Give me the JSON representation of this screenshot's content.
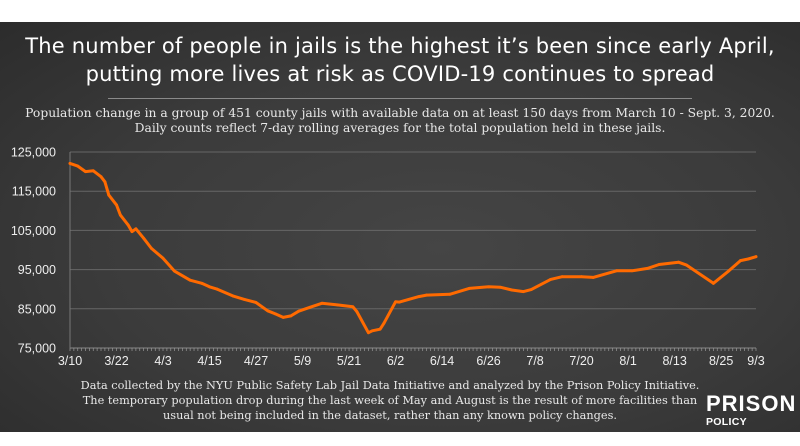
{
  "title_lines": [
    "The number of people in jails is the highest it’s been since early April,",
    "putting more lives at risk as COVID-19 continues to spread"
  ],
  "subtitle_lines": [
    "Population change in a group of 451 county jails with available data on at least 150 days from March 10 - Sept. 3, 2020.",
    "Daily counts reflect 7-day rolling averages for the total population held in these jails."
  ],
  "footer_lines": [
    "Data collected by the NYU Public Safety Lab Jail Data Initiative and analyzed by the Prison Policy Initiative.",
    "The temporary population drop during the last week of May and August is the result of more facilities than",
    "usual not being included in the dataset, rather than any known policy changes."
  ],
  "logo": {
    "line1": "PRISON",
    "line2": "POLICY INITIATIVE"
  },
  "colors": {
    "line": "#ff6a00",
    "grid": "#666666",
    "background": "#3b3b3b"
  },
  "chart_data": {
    "type": "line",
    "title": "",
    "xlabel": "",
    "ylabel": "",
    "ylim": [
      75000,
      125000
    ],
    "yticks": [
      "125,000",
      "115,000",
      "105,000",
      "95,000",
      "85,000",
      "75,000"
    ],
    "ytick_values": [
      125000,
      115000,
      105000,
      95000,
      85000,
      75000
    ],
    "xticks": [
      "3/10",
      "3/22",
      "4/3",
      "4/15",
      "4/27",
      "5/9",
      "5/21",
      "6/2",
      "6/14",
      "6/26",
      "7/8",
      "7/20",
      "8/1",
      "8/13",
      "8/25",
      "9/3"
    ],
    "xlim": [
      "3/10",
      "9/3"
    ],
    "grid": true,
    "legend": "none",
    "series": [
      {
        "x": [
          "3/10",
          "3/12",
          "3/14",
          "3/16",
          "3/18",
          "3/19",
          "3/20",
          "3/22",
          "3/23",
          "3/25",
          "3/26",
          "3/27",
          "3/29",
          "3/31",
          "4/3",
          "4/6",
          "4/10",
          "4/13",
          "4/15",
          "4/17",
          "4/21",
          "4/24",
          "4/27",
          "4/30",
          "5/2",
          "5/4",
          "5/6",
          "5/8",
          "5/11",
          "5/14",
          "5/18",
          "5/22",
          "5/23",
          "5/26",
          "5/27",
          "5/29",
          "5/30",
          "6/2",
          "6/3",
          "6/8",
          "6/10",
          "6/16",
          "6/21",
          "6/26",
          "6/29",
          "7/2",
          "7/5",
          "7/7",
          "7/12",
          "7/15",
          "7/20",
          "7/23",
          "7/29",
          "8/2",
          "8/6",
          "8/9",
          "8/14",
          "8/16",
          "8/23",
          "8/27",
          "8/30",
          "9/1",
          "9/3"
        ],
        "values": [
          122100,
          121400,
          120000,
          120200,
          118700,
          117400,
          114000,
          111500,
          108900,
          106400,
          104700,
          105400,
          103000,
          100400,
          97900,
          94600,
          92300,
          91500,
          90600,
          90000,
          88300,
          87400,
          86600,
          84500,
          83700,
          82800,
          83200,
          84400,
          85400,
          86400,
          86000,
          85500,
          84300,
          78900,
          79400,
          79800,
          81300,
          86800,
          86700,
          88100,
          88500,
          88700,
          90200,
          90600,
          90500,
          89800,
          89400,
          89900,
          92500,
          93200,
          93200,
          93000,
          94700,
          94700,
          95300,
          96300,
          96900,
          96200,
          91500,
          94700,
          97300,
          97700,
          98300
        ]
      }
    ]
  }
}
